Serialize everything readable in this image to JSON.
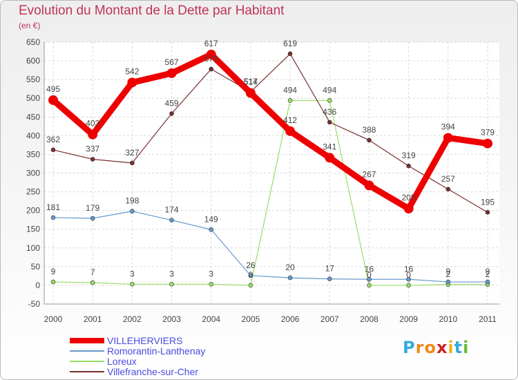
{
  "chart_data": {
    "type": "line",
    "title": "Evolution du Montant de la Dette par Habitant",
    "subtitle": "(en €)",
    "categories": [
      "2000",
      "2001",
      "2002",
      "2003",
      "2004",
      "2005",
      "2006",
      "2007",
      "2008",
      "2009",
      "2010",
      "2011"
    ],
    "ylim": [
      -50,
      650
    ],
    "yticks": [
      -50,
      0,
      50,
      100,
      150,
      200,
      250,
      300,
      350,
      400,
      450,
      500,
      550,
      600,
      650
    ],
    "grid": true,
    "legend_position": "bottom-left",
    "series": [
      {
        "name": "VILLEHERVIERS",
        "color": "#ee0000",
        "values": [
          495,
          403,
          542,
          567,
          617,
          514,
          412,
          341,
          267,
          205,
          394,
          379
        ],
        "labels": [
          "495",
          "403",
          "542",
          "567",
          "617",
          "514",
          "412",
          "341",
          "267",
          "205",
          "394",
          "379"
        ]
      },
      {
        "name": "Romorantin-Lanthenay",
        "color": "#6699cc",
        "values": [
          181,
          179,
          198,
          174,
          149,
          26,
          20,
          17,
          16,
          16,
          9,
          9
        ],
        "labels": [
          "181",
          "179",
          "198",
          "174",
          "149",
          "26",
          "20",
          "17",
          "16",
          "16",
          "9",
          "9"
        ]
      },
      {
        "name": "Loreux",
        "color": "#99dd66",
        "values": [
          9,
          7,
          3,
          3,
          3,
          0,
          494,
          494,
          0,
          0,
          2,
          2
        ],
        "labels": [
          "9",
          "7",
          "3",
          "3",
          "3",
          "0",
          "494",
          "494",
          "0",
          "0",
          "2",
          "2"
        ]
      },
      {
        "name": "Villefranche-sur-Cher",
        "color": "#7a2e2e",
        "values": [
          362,
          337,
          327,
          459,
          578,
          517,
          619,
          436,
          388,
          319,
          257,
          195
        ],
        "labels": [
          "362",
          "337",
          "327",
          "459",
          "578",
          "517",
          "619",
          "436",
          "388",
          "319",
          "257",
          "195"
        ]
      }
    ]
  },
  "logo": {
    "letters": [
      "P",
      "r",
      "o",
      "x",
      "i",
      "t",
      "i"
    ],
    "colors": [
      "#33aadd",
      "#f08a1c",
      "#f08a1c",
      "#cc2222",
      "#f0b01c",
      "#33aadd",
      "#66bb33"
    ]
  }
}
